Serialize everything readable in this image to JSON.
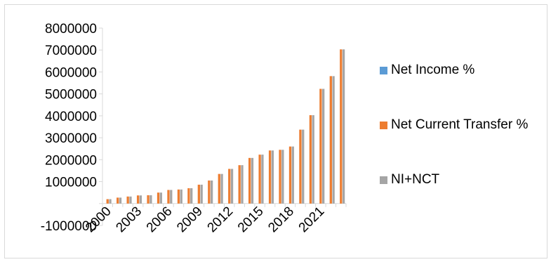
{
  "chart_data": {
    "type": "bar",
    "title": "",
    "xlabel": "",
    "ylabel": "",
    "ylim": [
      -1000000,
      8000000
    ],
    "y_ticks": [
      "-1000000",
      "0",
      "1000000",
      "2000000",
      "3000000",
      "4000000",
      "5000000",
      "6000000",
      "7000000",
      "8000000"
    ],
    "y_tick_labels_shown": [
      "-1000000",
      "",
      "1000000",
      "2000000",
      "3000000",
      "4000000",
      "5000000",
      "6000000",
      "7000000",
      "8000000"
    ],
    "categories": [
      "2000",
      "2001",
      "2002",
      "2003",
      "2004",
      "2005",
      "2006",
      "2007",
      "2008",
      "2009",
      "2010",
      "2011",
      "2012",
      "2013",
      "2014",
      "2015",
      "2016",
      "2017",
      "2018",
      "2019",
      "2020",
      "2021",
      "2022",
      "2023"
    ],
    "x_tick_labels": [
      "2000",
      "2003",
      "2006",
      "2009",
      "2012",
      "2015",
      "2018",
      "2021"
    ],
    "series": [
      {
        "name": "Net Income %",
        "color": "#5b9bd5",
        "values": [
          0,
          0,
          0,
          0,
          0,
          0,
          0,
          0,
          0,
          0,
          0,
          0,
          0,
          0,
          0,
          0,
          0,
          0,
          0,
          0,
          0,
          0,
          0,
          0
        ]
      },
      {
        "name": "Net Current Transfer %",
        "color": "#ed7d31",
        "values": [
          200000,
          270000,
          320000,
          370000,
          380000,
          500000,
          620000,
          640000,
          700000,
          860000,
          1050000,
          1350000,
          1580000,
          1750000,
          2080000,
          2230000,
          2420000,
          2450000,
          2600000,
          3370000,
          4030000,
          5230000,
          5810000,
          7030000
        ]
      },
      {
        "name": "NI+NCT",
        "color": "#a5a5a5",
        "values": [
          200000,
          270000,
          320000,
          370000,
          380000,
          500000,
          620000,
          640000,
          700000,
          860000,
          1050000,
          1350000,
          1580000,
          1750000,
          2080000,
          2230000,
          2420000,
          2450000,
          2600000,
          3370000,
          4030000,
          5230000,
          5810000,
          7030000
        ]
      }
    ],
    "legend_position": "right",
    "grid": false
  }
}
